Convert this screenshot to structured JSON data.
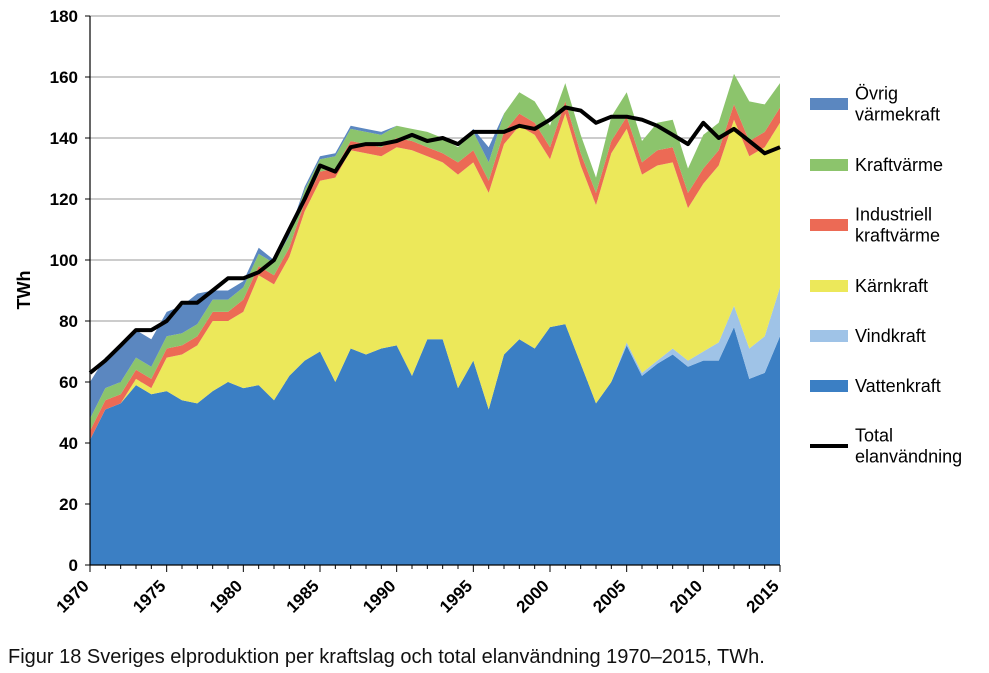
{
  "caption": "Figur 18 Sveriges elproduktion per kraftslag och total elanvändning 1970–2015, TWh.",
  "chart_data": {
    "type": "area",
    "stacked": true,
    "ylabel": "TWh",
    "xlabel": "",
    "ylim": [
      0,
      180
    ],
    "yticks": [
      0,
      20,
      40,
      60,
      80,
      100,
      120,
      140,
      160,
      180
    ],
    "xlim": [
      1970,
      2015
    ],
    "xticks": [
      1970,
      1975,
      1980,
      1985,
      1990,
      1995,
      2000,
      2005,
      2010,
      2015
    ],
    "grid": "horizontal",
    "legend_position": "right",
    "x": [
      1970,
      1971,
      1972,
      1973,
      1974,
      1975,
      1976,
      1977,
      1978,
      1979,
      1980,
      1981,
      1982,
      1983,
      1984,
      1985,
      1986,
      1987,
      1988,
      1989,
      1990,
      1991,
      1992,
      1993,
      1994,
      1995,
      1996,
      1997,
      1998,
      1999,
      2000,
      2001,
      2002,
      2003,
      2004,
      2005,
      2006,
      2007,
      2008,
      2009,
      2010,
      2011,
      2012,
      2013,
      2014,
      2015
    ],
    "series": [
      {
        "name": "Vattenkraft",
        "color": "#3b7fc4",
        "values": [
          41,
          51,
          53,
          59,
          56,
          57,
          54,
          53,
          57,
          60,
          58,
          59,
          54,
          62,
          67,
          70,
          60,
          71,
          69,
          71,
          72,
          62,
          74,
          74,
          58,
          67,
          51,
          69,
          74,
          71,
          78,
          79,
          66,
          53,
          60,
          72,
          62,
          66,
          69,
          65,
          67,
          67,
          78,
          61,
          63,
          75
        ]
      },
      {
        "name": "Vindkraft",
        "color": "#9fc3e7",
        "values": [
          0,
          0,
          0,
          0,
          0,
          0,
          0,
          0,
          0,
          0,
          0,
          0,
          0,
          0,
          0,
          0,
          0,
          0,
          0,
          0,
          0,
          0,
          0,
          0,
          0,
          0,
          0,
          0,
          0,
          0,
          0,
          0,
          0,
          0,
          0,
          1,
          1,
          1,
          2,
          2,
          3,
          6,
          7,
          10,
          12,
          16
        ]
      },
      {
        "name": "Kärnkraft",
        "color": "#ece85a",
        "values": [
          0,
          0,
          0,
          2,
          2,
          11,
          15,
          19,
          23,
          20,
          25,
          36,
          38,
          39,
          49,
          56,
          67,
          65,
          66,
          63,
          65,
          74,
          60,
          58,
          70,
          65,
          71,
          69,
          70,
          70,
          55,
          69,
          65,
          65,
          75,
          70,
          65,
          64,
          61,
          50,
          55,
          58,
          61,
          63,
          62,
          54
        ]
      },
      {
        "name": "Industriell kraftvärme",
        "color": "#ec6a55",
        "values": [
          3,
          3,
          3,
          3,
          3,
          3,
          3,
          3,
          3,
          3,
          4,
          3,
          3,
          3,
          3,
          3,
          3,
          3,
          3,
          3,
          3,
          3,
          3,
          3,
          4,
          4,
          4,
          4,
          4,
          4,
          4,
          4,
          4,
          4,
          4,
          4,
          4,
          5,
          5,
          5,
          5,
          5,
          5,
          5,
          5,
          5
        ]
      },
      {
        "name": "Kraftvärme",
        "color": "#8cc46c",
        "values": [
          4,
          4,
          4,
          4,
          4,
          4,
          4,
          4,
          4,
          4,
          4,
          4,
          4,
          4,
          4,
          4,
          4,
          4,
          4,
          4,
          4,
          4,
          5,
          5,
          5,
          6,
          6,
          6,
          7,
          7,
          7,
          6,
          6,
          5,
          8,
          8,
          7,
          9,
          9,
          8,
          11,
          9,
          10,
          13,
          9,
          8
        ]
      },
      {
        "name": "Övrig värmekraft",
        "color": "#5b87c0",
        "values": [
          12,
          10,
          12,
          9,
          9,
          8,
          9,
          10,
          3,
          3,
          2,
          2,
          1,
          1,
          1,
          1,
          1,
          1,
          1,
          1,
          0,
          0,
          0,
          0,
          0,
          1,
          5,
          0,
          0,
          0,
          0,
          0,
          0,
          0,
          0,
          0,
          0,
          0,
          0,
          0,
          0,
          0,
          0,
          0,
          0,
          0
        ]
      }
    ],
    "line_series": {
      "name": "Total elanvändning",
      "color": "#000000",
      "values": [
        63,
        67,
        72,
        77,
        77,
        80,
        86,
        86,
        90,
        94,
        94,
        96,
        100,
        110,
        120,
        131,
        129,
        137,
        138,
        138,
        139,
        141,
        139,
        140,
        138,
        142,
        142,
        142,
        144,
        143,
        146,
        150,
        149,
        145,
        147,
        147,
        146,
        144,
        141,
        138,
        145,
        140,
        143,
        139,
        135,
        137
      ]
    },
    "legend": [
      {
        "key": "Övrig värmekraft",
        "lines": [
          "Övrig",
          "värmekraft"
        ],
        "color": "#5b87c0",
        "kind": "box"
      },
      {
        "key": "Kraftvärme",
        "lines": [
          "Kraftvärme"
        ],
        "color": "#8cc46c",
        "kind": "box"
      },
      {
        "key": "Industriell kraftvärme",
        "lines": [
          "Industriell",
          "kraftvärme"
        ],
        "color": "#ec6a55",
        "kind": "box"
      },
      {
        "key": "Kärnkraft",
        "lines": [
          "Kärnkraft"
        ],
        "color": "#ece85a",
        "kind": "box"
      },
      {
        "key": "Vindkraft",
        "lines": [
          "Vindkraft"
        ],
        "color": "#9fc3e7",
        "kind": "box"
      },
      {
        "key": "Vattenkraft",
        "lines": [
          "Vattenkraft"
        ],
        "color": "#3b7fc4",
        "kind": "box"
      },
      {
        "key": "Total elanvändning",
        "lines": [
          "Total",
          "elanvändning"
        ],
        "color": "#000000",
        "kind": "line"
      }
    ]
  }
}
